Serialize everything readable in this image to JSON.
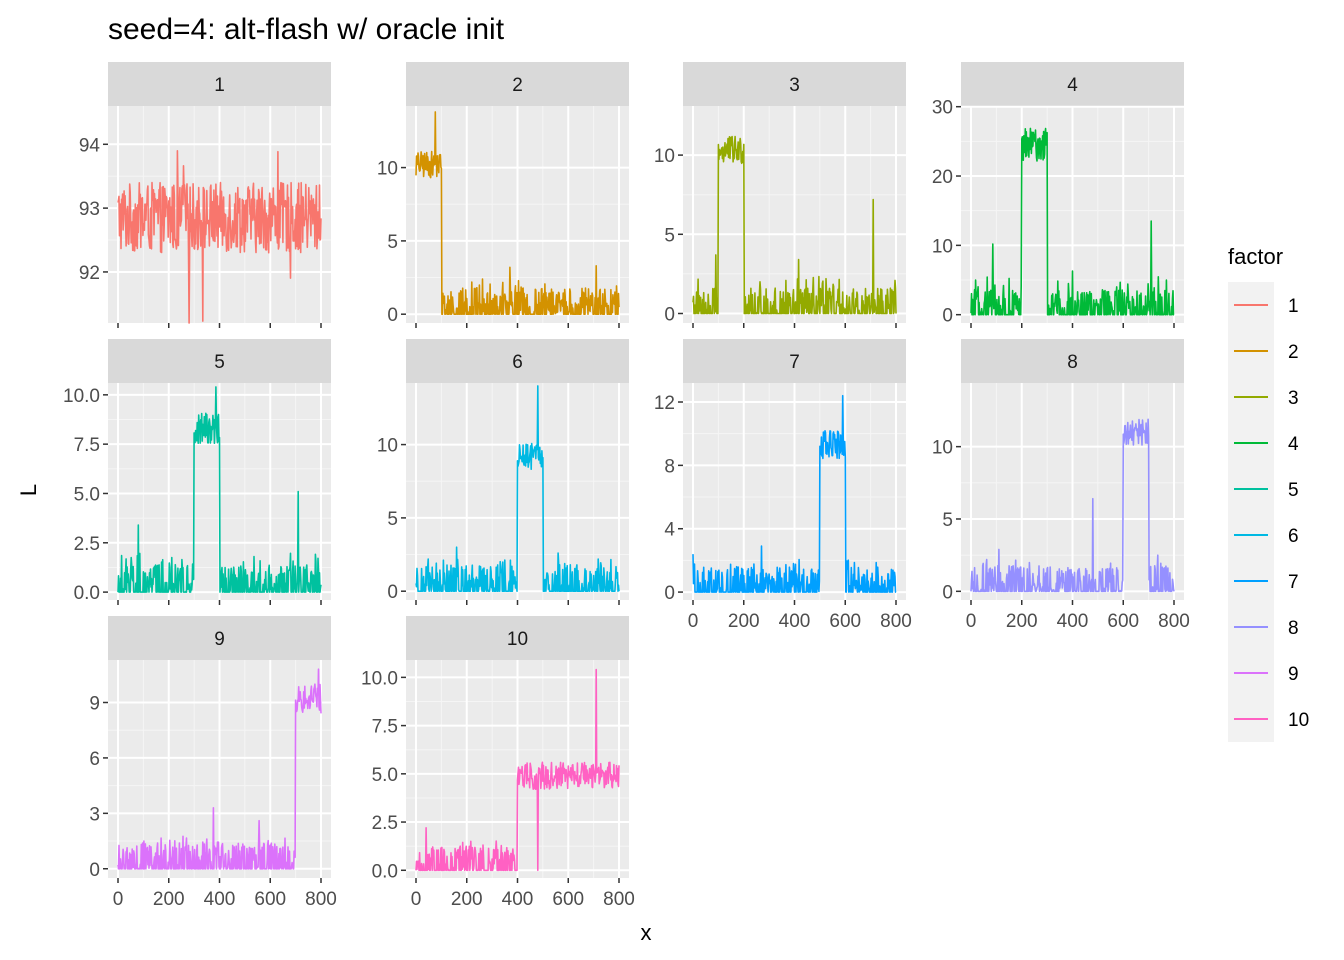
{
  "chart_data": {
    "type": "line",
    "title": "seed=4: alt-flash w/ oracle init",
    "xlabel": "x",
    "ylabel": "L",
    "x_ticks": [
      0,
      200,
      400,
      600,
      800
    ],
    "xlim": [
      0,
      800
    ],
    "grid": true,
    "legend": {
      "title": "factor",
      "placement": "right",
      "entries": [
        "1",
        "2",
        "3",
        "4",
        "5",
        "6",
        "7",
        "8",
        "9",
        "10"
      ]
    },
    "facets": [
      {
        "label": "1",
        "color": "#F8766D",
        "ylim": [
          91.2,
          94.6
        ],
        "yticks": [
          92,
          93,
          94
        ],
        "ytick_labels": [
          "92",
          "93",
          "94"
        ],
        "baseline": 92.85,
        "noise": 0.55,
        "spike_p": 0.02,
        "spike_h": 1.6,
        "blocks": [],
        "outliers": [],
        "zero_low": false
      },
      {
        "label": "2",
        "color": "#D39200",
        "ylim": [
          -0.6,
          14.2
        ],
        "yticks": [
          0,
          5,
          10
        ],
        "ytick_labels": [
          "0",
          "5",
          "10"
        ],
        "baseline": 0,
        "noise": 0.9,
        "spike_p": 0.06,
        "spike_h": 2.2,
        "blocks": [
          {
            "start": 0,
            "end": 100,
            "level": 10.2,
            "spread": 0.9
          }
        ],
        "outliers": [
          {
            "x": 370,
            "y": 3.2
          },
          {
            "x": 710,
            "y": 3.3
          },
          {
            "x": 75,
            "y": 13.8
          }
        ],
        "zero_low": true
      },
      {
        "label": "3",
        "color": "#93AA00",
        "ylim": [
          -0.6,
          13.1
        ],
        "yticks": [
          0,
          5,
          10
        ],
        "ytick_labels": [
          "0",
          "5",
          "10"
        ],
        "baseline": 0,
        "noise": 0.8,
        "spike_p": 0.06,
        "spike_h": 2.2,
        "blocks": [
          {
            "start": 100,
            "end": 200,
            "level": 10.3,
            "spread": 0.9
          }
        ],
        "outliers": [
          {
            "x": 90,
            "y": 3.7
          },
          {
            "x": 415,
            "y": 3.4
          },
          {
            "x": 710,
            "y": 7.2
          }
        ],
        "zero_low": true
      },
      {
        "label": "4",
        "color": "#00BA38",
        "ylim": [
          -1.2,
          30.1
        ],
        "yticks": [
          0,
          10,
          20,
          30
        ],
        "ytick_labels": [
          "0",
          "10",
          "20",
          "30"
        ],
        "baseline": 0,
        "noise": 1.8,
        "spike_p": 0.06,
        "spike_h": 5,
        "blocks": [
          {
            "start": 200,
            "end": 300,
            "level": 24.5,
            "spread": 2.4
          }
        ],
        "outliers": [
          {
            "x": 85,
            "y": 10.2
          },
          {
            "x": 400,
            "y": 6.3
          },
          {
            "x": 710,
            "y": 13.5
          }
        ],
        "zero_low": true
      },
      {
        "label": "5",
        "color": "#00C19F",
        "ylim": [
          -0.4,
          10.6
        ],
        "yticks": [
          0,
          2.5,
          5,
          7.5,
          10
        ],
        "ytick_labels": [
          "0.0",
          "2.5",
          "5.0",
          "7.5",
          "10.0"
        ],
        "baseline": 0,
        "noise": 0.7,
        "spike_p": 0.07,
        "spike_h": 1.8,
        "blocks": [
          {
            "start": 300,
            "end": 400,
            "level": 8.3,
            "spread": 0.8
          }
        ],
        "outliers": [
          {
            "x": 80,
            "y": 3.4
          },
          {
            "x": 710,
            "y": 5.1
          },
          {
            "x": 385,
            "y": 10.4
          }
        ],
        "zero_low": true
      },
      {
        "label": "6",
        "color": "#00B9E3",
        "ylim": [
          -0.6,
          14.2
        ],
        "yticks": [
          0,
          5,
          10
        ],
        "ytick_labels": [
          "0",
          "5",
          "10"
        ],
        "baseline": 0,
        "noise": 0.9,
        "spike_p": 0.06,
        "spike_h": 2,
        "blocks": [
          {
            "start": 400,
            "end": 500,
            "level": 9.2,
            "spread": 0.9
          }
        ],
        "outliers": [
          {
            "x": 160,
            "y": 3
          },
          {
            "x": 560,
            "y": 2.6
          },
          {
            "x": 480,
            "y": 14
          }
        ],
        "zero_low": true
      },
      {
        "label": "7",
        "color": "#00A0FF",
        "ylim": [
          -0.5,
          13.2
        ],
        "yticks": [
          0,
          4,
          8,
          12
        ],
        "ytick_labels": [
          "0",
          "4",
          "8",
          "12"
        ],
        "baseline": 0,
        "noise": 0.8,
        "spike_p": 0.06,
        "spike_h": 1.9,
        "blocks": [
          {
            "start": 500,
            "end": 600,
            "level": 9.3,
            "spread": 0.9
          }
        ],
        "outliers": [
          {
            "x": 0,
            "y": 2.4
          },
          {
            "x": 270,
            "y": 2.9
          },
          {
            "x": 590,
            "y": 12.4
          }
        ],
        "zero_low": true
      },
      {
        "label": "8",
        "color": "#9590FF",
        "ylim": [
          -0.6,
          14.4
        ],
        "yticks": [
          0,
          5,
          10
        ],
        "ytick_labels": [
          "0",
          "5",
          "10"
        ],
        "baseline": 0,
        "noise": 0.9,
        "spike_p": 0.06,
        "spike_h": 2,
        "blocks": [
          {
            "start": 600,
            "end": 700,
            "level": 11,
            "spread": 0.9
          }
        ],
        "outliers": [
          {
            "x": 480,
            "y": 6.4
          },
          {
            "x": 110,
            "y": 2.9
          },
          {
            "x": 735,
            "y": 2.5
          }
        ],
        "zero_low": true
      },
      {
        "label": "9",
        "color": "#DB72FB",
        "ylim": [
          -0.5,
          11.3
        ],
        "yticks": [
          0,
          3,
          6,
          9
        ],
        "ytick_labels": [
          "0",
          "3",
          "6",
          "9"
        ],
        "baseline": 0,
        "noise": 0.7,
        "spike_p": 0.07,
        "spike_h": 1.6,
        "blocks": [
          {
            "start": 700,
            "end": 800,
            "level": 9.2,
            "spread": 0.8
          }
        ],
        "outliers": [
          {
            "x": 375,
            "y": 3.3
          },
          {
            "x": 555,
            "y": 2.6
          },
          {
            "x": 790,
            "y": 10.8
          }
        ],
        "zero_low": true
      },
      {
        "label": "10",
        "color": "#FF61C3",
        "ylim": [
          -0.4,
          10.9
        ],
        "yticks": [
          0,
          2.5,
          5,
          7.5,
          10
        ],
        "ytick_labels": [
          "0.0",
          "2.5",
          "5.0",
          "7.5",
          "10.0"
        ],
        "baseline": 0,
        "noise": 0.6,
        "spike_p": 0.07,
        "spike_h": 1.4,
        "blocks": [
          {
            "start": 400,
            "end": 800,
            "level": 4.9,
            "spread": 0.7
          }
        ],
        "outliers": [
          {
            "x": 480,
            "y": 0
          },
          {
            "x": 710,
            "y": 10.4
          },
          {
            "x": 40,
            "y": 2.2
          }
        ],
        "zero_low": true
      }
    ]
  }
}
